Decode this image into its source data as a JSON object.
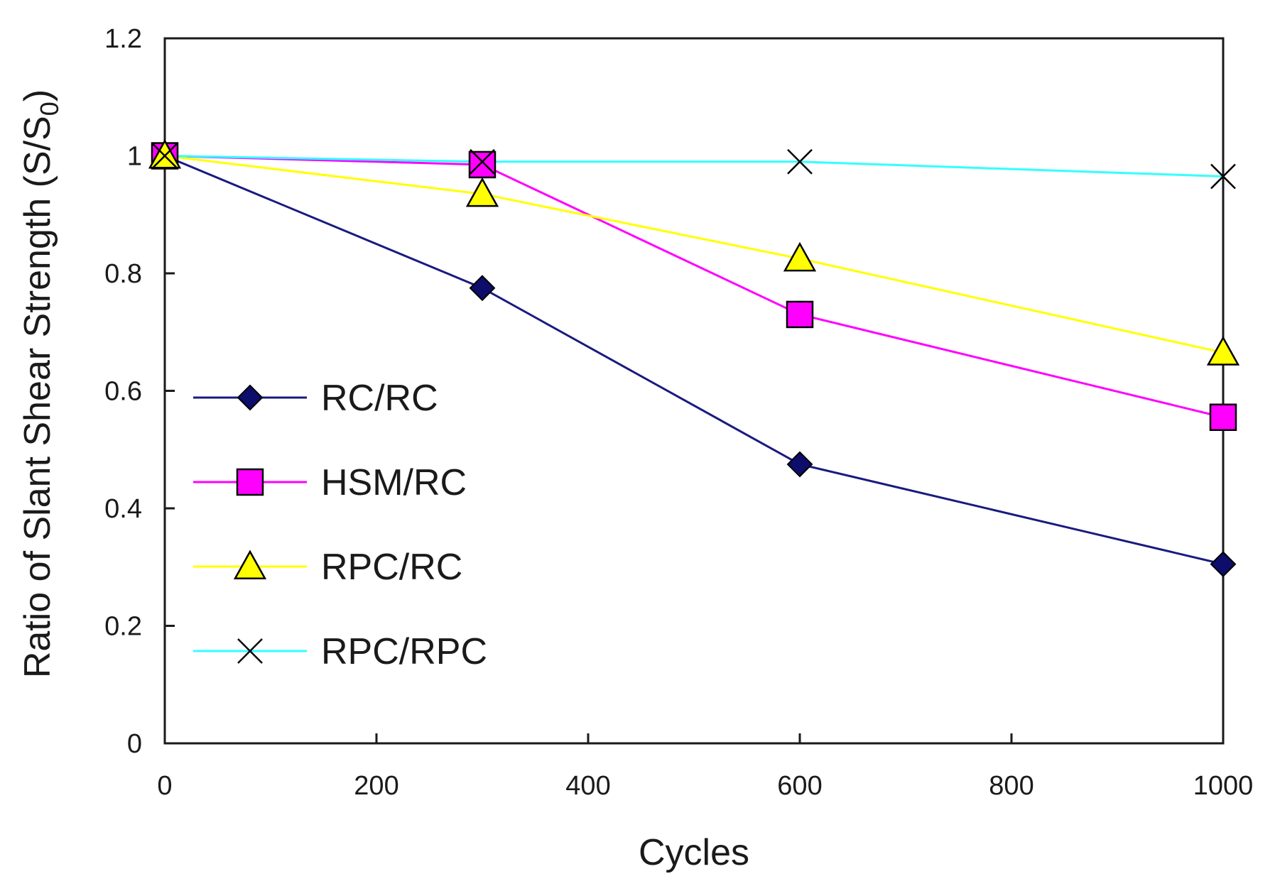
{
  "chart_data": {
    "type": "line",
    "title": "",
    "xlabel": "Cycles",
    "ylabel_main": "Ratio of Slant Shear Strength (S/S",
    "ylabel_sub": "0",
    "ylabel_close": ")",
    "xlim": [
      0,
      1000
    ],
    "ylim": [
      0,
      1.2
    ],
    "xticks": [
      0,
      200,
      400,
      600,
      800,
      1000
    ],
    "xtick_labels": [
      "0",
      "200",
      "400",
      "600",
      "800",
      "1000"
    ],
    "yticks": [
      0,
      0.2,
      0.4,
      0.6,
      0.8,
      1,
      1.2
    ],
    "ytick_labels": [
      "0",
      "0.2",
      "0.4",
      "0.6",
      "0.8",
      "1",
      "1.2"
    ],
    "grid": false,
    "legend_position": "left-center",
    "series": [
      {
        "name": "RC/RC",
        "marker": "diamond",
        "color": "#1a1a80",
        "fill": "#0d0d6b",
        "x": [
          0,
          300,
          600,
          1000
        ],
        "y": [
          1.0,
          0.775,
          0.475,
          0.305
        ]
      },
      {
        "name": "HSM/RC",
        "marker": "square",
        "color": "#ff00ff",
        "fill": "#ff00ff",
        "x": [
          0,
          300,
          600,
          1000
        ],
        "y": [
          1.0,
          0.985,
          0.73,
          0.555
        ]
      },
      {
        "name": "RPC/RC",
        "marker": "triangle",
        "color": "#ffff00",
        "fill": "#ffff00",
        "x": [
          0,
          300,
          600,
          1000
        ],
        "y": [
          1.0,
          0.935,
          0.825,
          0.665
        ]
      },
      {
        "name": "RPC/RPC",
        "marker": "x",
        "color": "#33ffff",
        "fill": "none",
        "x": [
          0,
          300,
          600,
          1000
        ],
        "y": [
          1.0,
          0.99,
          0.99,
          0.965
        ]
      }
    ]
  }
}
